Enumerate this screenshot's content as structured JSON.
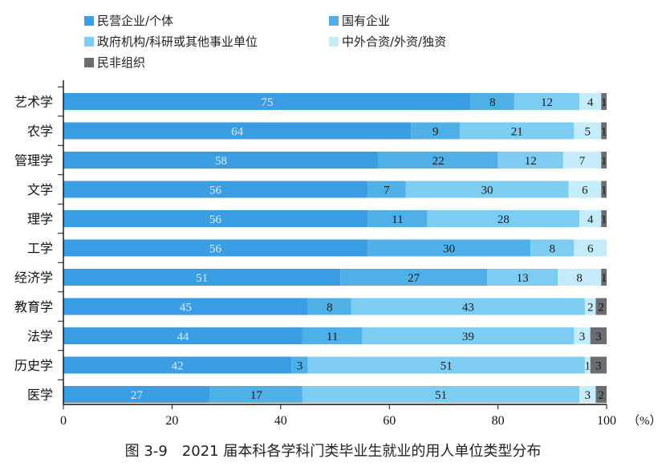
{
  "chart_data": {
    "type": "bar",
    "orientation": "horizontal",
    "stacked": true,
    "caption": "图 3-9　2021 届本科各学科门类毕业生就业的用人单位类型分布",
    "x_unit": "（%）",
    "xlim": [
      0,
      100
    ],
    "x_ticks": [
      "0",
      "20",
      "40",
      "60",
      "80",
      "100"
    ],
    "grid": false,
    "legend_position": "top-left",
    "categories": [
      "艺术学",
      "农学",
      "管理学",
      "文学",
      "理学",
      "工学",
      "经济学",
      "教育学",
      "法学",
      "历史学",
      "医学"
    ],
    "series": [
      {
        "name": "民营企业/个体",
        "color": "#3b9ee4",
        "label_color": "#d7ecfa",
        "values": [
          75,
          64,
          58,
          56,
          56,
          56,
          51,
          45,
          44,
          42,
          27
        ]
      },
      {
        "name": "国有企业",
        "color": "#4fb0e8",
        "label_color": "#1a1a1a",
        "values": [
          8,
          9,
          22,
          7,
          11,
          30,
          27,
          8,
          11,
          3,
          17
        ]
      },
      {
        "name": "政府机构/科研或其他事业单位",
        "color": "#7dcdf3",
        "label_color": "#1a1a1a",
        "values": [
          12,
          21,
          12,
          30,
          28,
          8,
          13,
          43,
          39,
          51,
          51
        ]
      },
      {
        "name": "中外合资/外资/独资",
        "color": "#c4ecfb",
        "label_color": "#1a1a1a",
        "values": [
          4,
          5,
          7,
          6,
          4,
          6,
          8,
          2,
          3,
          1,
          3
        ]
      },
      {
        "name": "民非组织",
        "color": "#6a6e74",
        "label_color": "#1a1a1a",
        "values": [
          1,
          1,
          1,
          1,
          1,
          0,
          1,
          2,
          3,
          3,
          2
        ]
      }
    ]
  }
}
